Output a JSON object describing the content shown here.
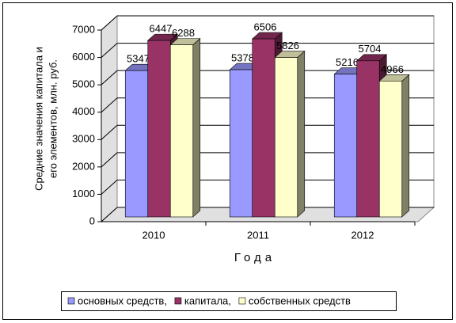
{
  "chart_data": {
    "type": "bar3d",
    "y_label": [
      "Средние значения капитала и",
      "его элементов, млн. руб."
    ],
    "x_label": "Года",
    "categories": [
      "2010",
      "2011",
      "2012"
    ],
    "series": [
      {
        "name": "основных средств,",
        "color": "#9999ff",
        "values": [
          5347,
          5378,
          5216
        ]
      },
      {
        "name": "капитала,",
        "color": "#993366",
        "values": [
          6447,
          6506,
          5704
        ]
      },
      {
        "name": "собственных средств",
        "color": "#ffffcc",
        "values": [
          6288,
          5826,
          4966
        ]
      }
    ],
    "ylim": [
      0,
      7000
    ],
    "yticks": [
      0,
      1000,
      2000,
      3000,
      4000,
      5000,
      6000,
      7000
    ],
    "grid": true
  }
}
